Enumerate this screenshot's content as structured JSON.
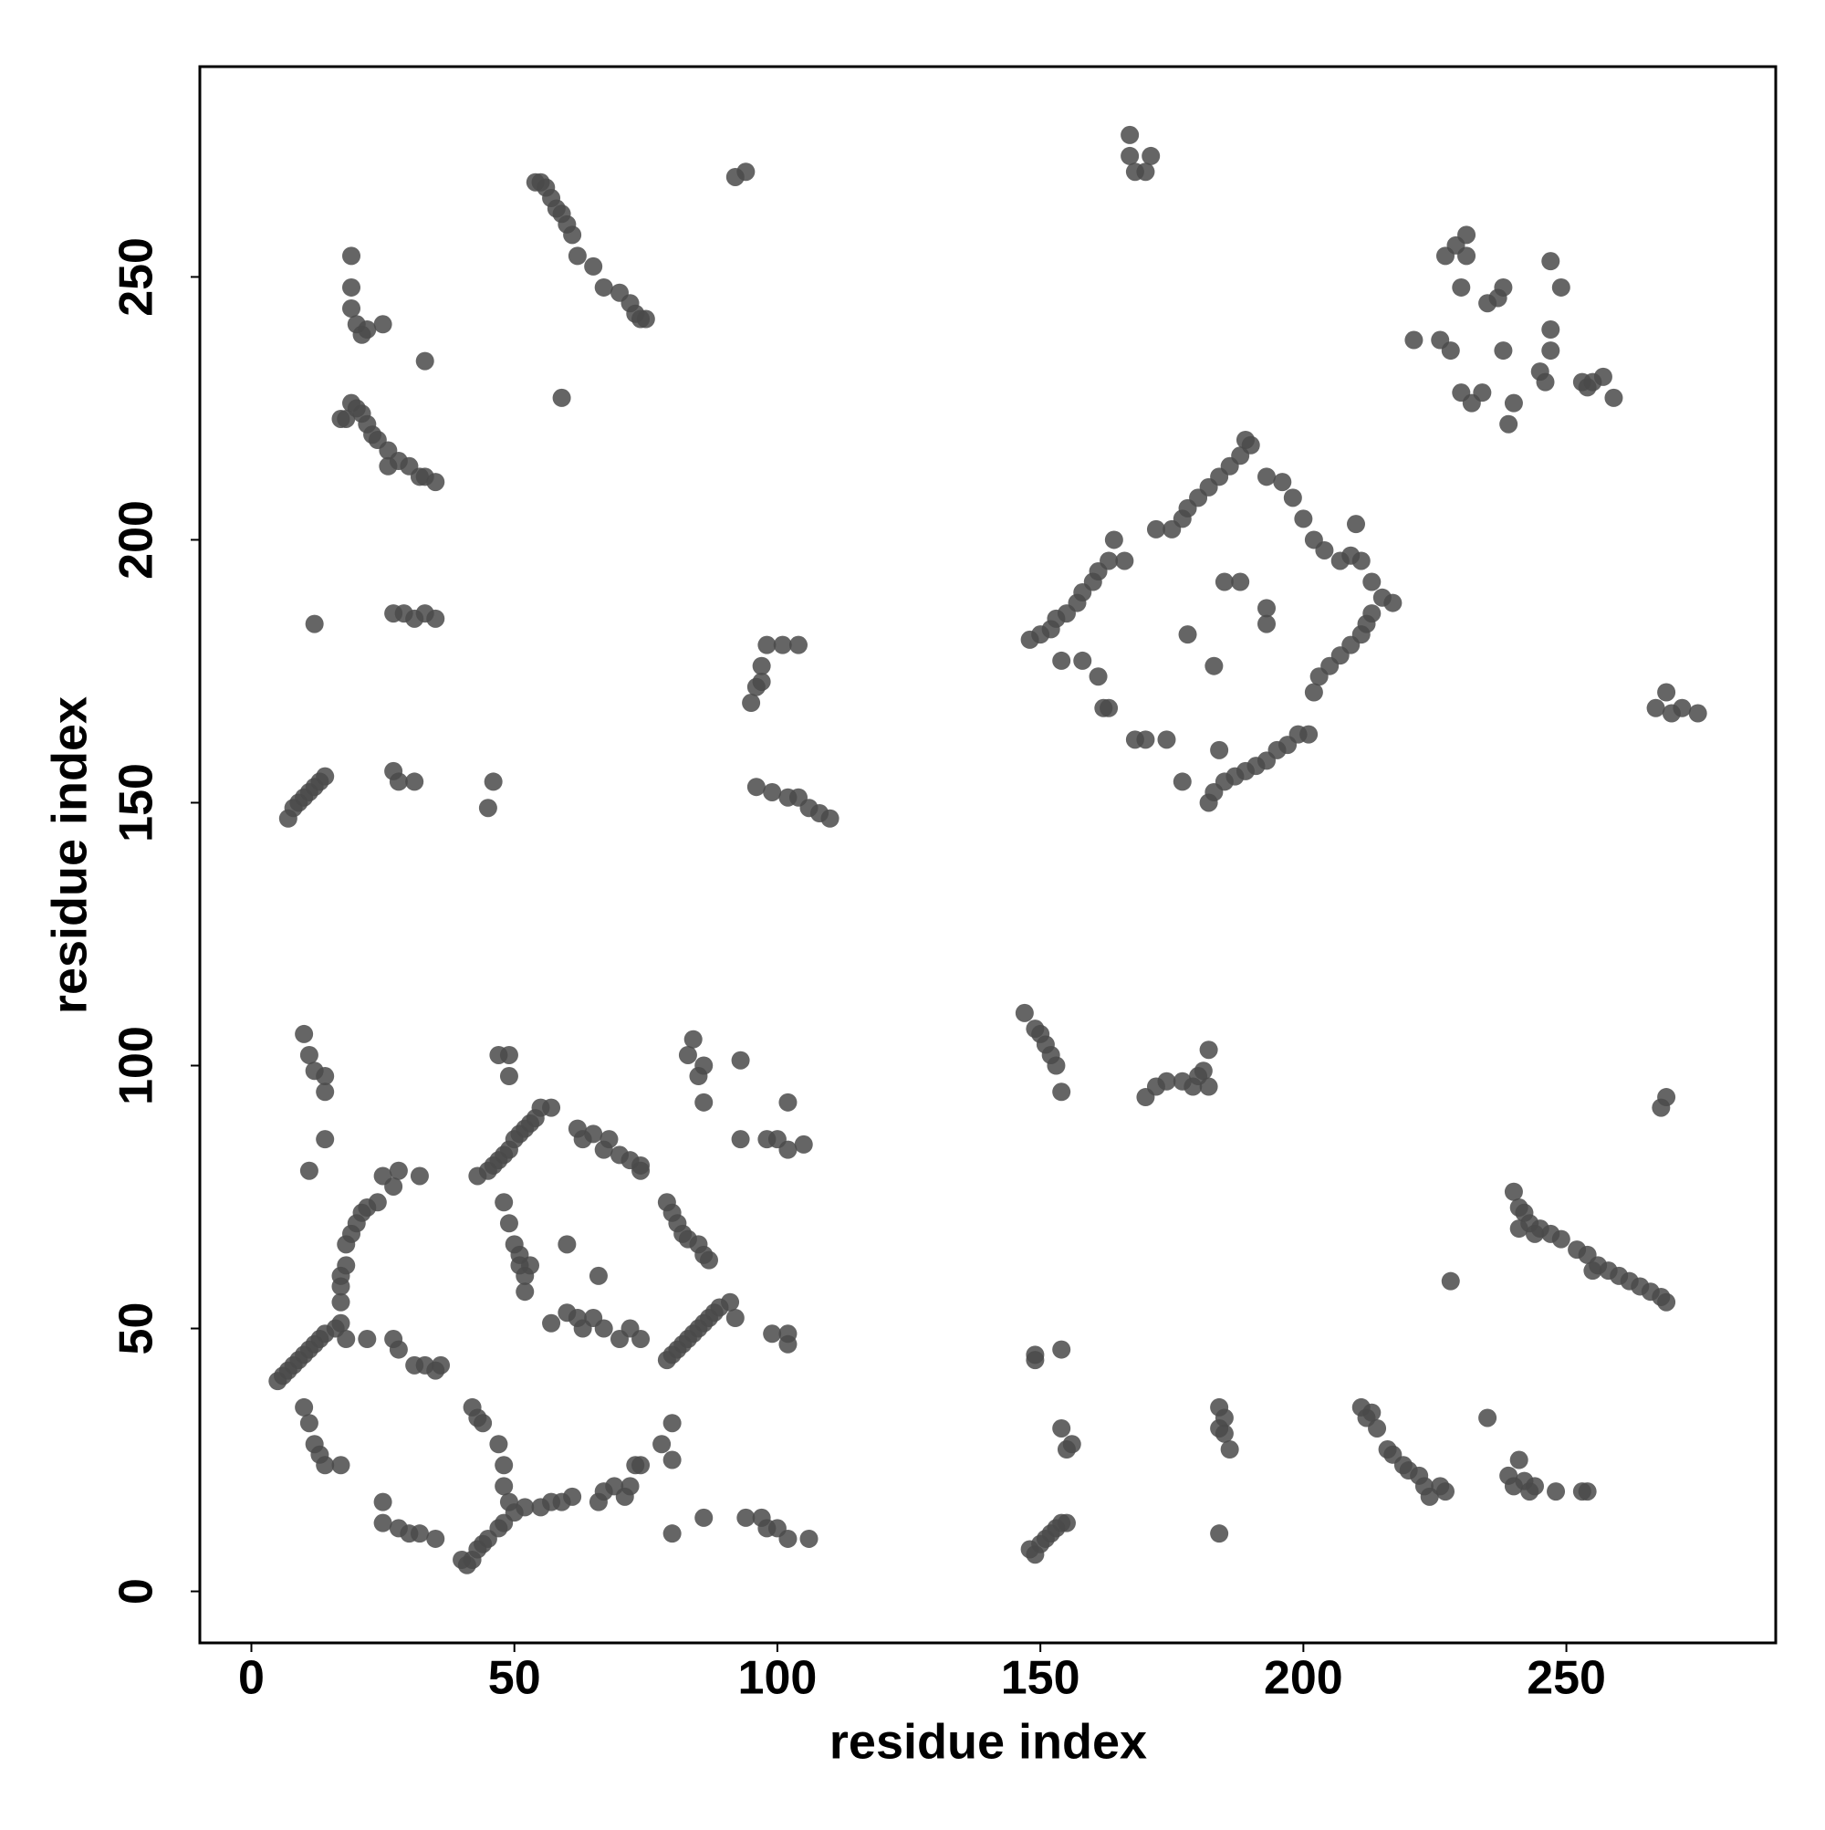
{
  "chart_data": {
    "type": "scatter",
    "xlabel": "residue index",
    "ylabel": "residue index",
    "xlim": [
      -9.8,
      289.8
    ],
    "ylim": [
      -9.8,
      290
    ],
    "xticks": [
      0,
      50,
      100,
      150,
      200,
      250
    ],
    "yticks": [
      0,
      50,
      100,
      150,
      200,
      250
    ],
    "color": "#4a4a4a",
    "x": [
      5,
      6,
      7,
      8,
      9,
      10,
      11,
      12,
      13,
      14,
      16,
      17,
      18,
      17,
      17,
      17,
      18,
      18,
      19,
      20,
      21,
      22,
      24,
      25,
      27,
      28,
      32,
      10,
      11,
      12,
      13,
      14,
      17,
      22,
      27,
      28,
      31,
      33,
      35,
      36,
      25,
      25,
      28,
      30,
      32,
      35,
      40,
      41,
      42,
      43,
      44,
      45,
      47,
      48,
      50,
      52,
      55,
      57,
      59,
      61,
      66,
      67,
      69,
      71,
      72,
      73,
      74,
      78,
      80,
      80,
      80,
      86,
      42,
      43,
      44,
      47,
      48,
      48,
      49,
      10,
      11,
      12,
      14,
      14,
      14,
      11,
      43,
      45,
      46,
      47,
      48,
      49,
      50,
      51,
      52,
      53,
      54,
      55,
      57,
      47,
      49,
      49,
      48,
      49,
      50,
      51,
      51,
      52,
      52,
      53,
      57,
      60,
      62,
      63,
      65,
      67,
      70,
      72,
      74,
      60,
      66,
      62,
      63,
      65,
      67,
      68,
      70,
      72,
      74,
      74,
      79,
      80,
      81,
      82,
      83,
      85,
      86,
      87,
      79,
      80,
      81,
      82,
      83,
      84,
      85,
      86,
      87,
      88,
      89,
      91,
      92,
      99,
      102,
      102,
      83,
      84,
      85,
      86,
      86,
      93,
      93,
      98,
      100,
      102,
      102,
      105,
      94,
      97,
      98,
      100,
      102,
      106,
      12,
      27,
      29,
      31,
      33,
      35,
      7,
      8,
      9,
      10,
      11,
      12,
      13,
      14,
      27,
      28,
      31,
      45,
      46,
      19,
      19,
      19,
      20,
      21,
      22,
      25,
      33,
      17,
      18,
      19,
      20,
      21,
      22,
      23,
      24,
      26,
      28,
      30,
      32,
      33,
      35,
      26,
      54,
      55,
      56,
      57,
      58,
      59,
      60,
      61,
      62,
      65,
      67,
      70,
      72,
      73,
      74,
      75,
      59,
      92,
      94,
      95,
      96,
      97,
      98,
      101,
      104,
      97,
      96,
      99,
      102,
      104,
      106,
      108,
      110,
      167,
      167,
      168,
      170,
      171,
      148,
      150,
      152,
      153,
      155,
      157,
      158,
      160,
      161,
      163,
      164,
      166,
      172,
      175,
      177,
      178,
      180,
      182,
      184,
      186,
      188,
      189,
      190,
      193,
      196,
      198,
      200,
      202,
      204,
      207,
      209,
      211,
      213,
      215,
      217,
      210,
      213,
      212,
      211,
      209,
      207,
      205,
      203,
      202,
      182,
      183,
      185,
      187,
      189,
      191,
      193,
      195,
      197,
      199,
      201,
      154,
      158,
      161,
      162,
      163,
      168,
      170,
      174,
      177,
      184,
      178,
      183,
      185,
      188,
      193,
      193,
      226,
      227,
      229,
      231,
      231,
      230,
      221,
      228,
      230,
      232,
      234,
      235,
      237,
      238,
      238,
      239,
      240,
      246,
      247,
      247,
      245,
      247,
      249,
      253,
      254,
      255,
      257,
      259,
      267,
      270,
      272,
      275,
      269,
      147,
      149,
      150,
      151,
      152,
      153,
      154,
      170,
      172,
      174,
      177,
      179,
      180,
      181,
      182,
      182,
      268,
      269,
      240,
      241,
      242,
      243,
      245,
      247,
      249,
      252,
      254,
      256,
      258,
      260,
      262,
      264,
      266,
      268,
      269,
      241,
      244,
      255,
      228,
      149,
      149,
      154,
      154,
      155,
      156,
      148,
      150,
      151,
      152,
      153,
      154,
      155,
      149,
      184,
      185,
      186,
      185,
      184,
      184,
      211,
      212,
      213,
      214,
      216,
      217,
      219,
      220,
      222,
      223,
      224,
      226,
      227,
      235,
      239,
      240,
      241,
      242,
      243,
      244,
      248,
      253,
      254
    ],
    "values": [
      40,
      41,
      42,
      43,
      44,
      45,
      46,
      47,
      48,
      49,
      50,
      51,
      48,
      55,
      58,
      60,
      62,
      66,
      68,
      70,
      72,
      73,
      74,
      79,
      77,
      80,
      79,
      35,
      32,
      28,
      26,
      24,
      24,
      48,
      48,
      46,
      43,
      43,
      42,
      43,
      17,
      13,
      12,
      11,
      11,
      10,
      6,
      5,
      6,
      8,
      9,
      10,
      12,
      13,
      15,
      16,
      16,
      17,
      17,
      18,
      17,
      19,
      20,
      18,
      20,
      24,
      24,
      28,
      25,
      32,
      11,
      14,
      35,
      33,
      32,
      28,
      24,
      20,
      17,
      106,
      102,
      99,
      98,
      95,
      86,
      80,
      79,
      80,
      81,
      82,
      83,
      84,
      86,
      87,
      88,
      89,
      90,
      92,
      92,
      102,
      102,
      98,
      74,
      70,
      66,
      64,
      62,
      60,
      57,
      62,
      51,
      53,
      52,
      50,
      52,
      50,
      48,
      50,
      48,
      66,
      60,
      88,
      86,
      87,
      84,
      86,
      83,
      82,
      81,
      80,
      74,
      72,
      70,
      68,
      67,
      66,
      64,
      63,
      44,
      45,
      46,
      47,
      48,
      49,
      50,
      51,
      52,
      53,
      54,
      55,
      52,
      49,
      47,
      49,
      102,
      105,
      98,
      100,
      93,
      101,
      86,
      86,
      86,
      84,
      93,
      85,
      14,
      14,
      12,
      12,
      10,
      10,
      184,
      186,
      186,
      185,
      186,
      185,
      147,
      149,
      150,
      151,
      152,
      153,
      154,
      155,
      156,
      154,
      154,
      149,
      154,
      254,
      248,
      244,
      241,
      239,
      240,
      241,
      234,
      223,
      223,
      226,
      225,
      224,
      222,
      220,
      219,
      217,
      215,
      214,
      212,
      212,
      211,
      214,
      268,
      268,
      267,
      265,
      263,
      262,
      260,
      258,
      254,
      252,
      248,
      247,
      245,
      243,
      242,
      242,
      227,
      269,
      270,
      169,
      172,
      176,
      180,
      180,
      180,
      173,
      153,
      152,
      151,
      151,
      149,
      148,
      147,
      277,
      273,
      270,
      270,
      273,
      181,
      182,
      183,
      185,
      186,
      188,
      190,
      192,
      194,
      196,
      200,
      196,
      202,
      202,
      204,
      206,
      208,
      210,
      212,
      214,
      216,
      219,
      218,
      212,
      211,
      208,
      204,
      200,
      198,
      196,
      197,
      196,
      192,
      189,
      188,
      203,
      186,
      184,
      182,
      180,
      178,
      176,
      174,
      171,
      150,
      152,
      154,
      155,
      156,
      157,
      158,
      160,
      161,
      163,
      163,
      177,
      177,
      174,
      168,
      168,
      162,
      162,
      162,
      154,
      160,
      182,
      176,
      192,
      192,
      187,
      184,
      238,
      254,
      256,
      258,
      254,
      248,
      238,
      236,
      228,
      226,
      228,
      245,
      246,
      248,
      236,
      222,
      226,
      230,
      236,
      240,
      232,
      253,
      248,
      230,
      229,
      230,
      231,
      227,
      168,
      167,
      168,
      167,
      171,
      110,
      107,
      106,
      104,
      102,
      100,
      95,
      94,
      96,
      97,
      97,
      96,
      98,
      99,
      103,
      96,
      92,
      94,
      76,
      73,
      72,
      70,
      69,
      68,
      67,
      65,
      64,
      62,
      61,
      60,
      59,
      58,
      57,
      56,
      55,
      69,
      68,
      61,
      59,
      44,
      45,
      46,
      31,
      27,
      28,
      8,
      9,
      10,
      11,
      12,
      13,
      13,
      7,
      35,
      33,
      27,
      30,
      31,
      11,
      35,
      33,
      34,
      31,
      27,
      26,
      24,
      23,
      22,
      20,
      18,
      20,
      19,
      33,
      22,
      20,
      25,
      21,
      19,
      20,
      19,
      19,
      19
    ]
  }
}
